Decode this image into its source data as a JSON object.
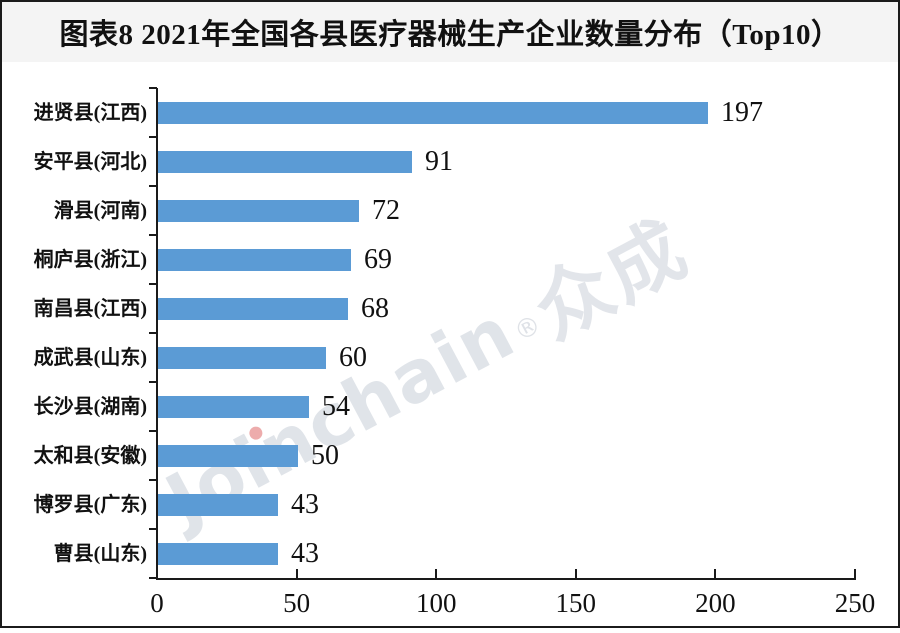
{
  "title": "图表8  2021年全国各县医疗器械生产企业数量分布（Top10）",
  "watermark": {
    "brand": "Joinchain",
    "reg": "®",
    "suffix": "众成"
  },
  "chart_data": {
    "type": "bar",
    "orientation": "horizontal",
    "title": "图表8 2021年全国各县医疗器械生产企业数量分布（Top10）",
    "categories": [
      "进贤县(江西)",
      "安平县(河北)",
      "滑县(河南)",
      "桐庐县(浙江)",
      "南昌县(江西)",
      "成武县(山东)",
      "长沙县(湖南)",
      "太和县(安徽)",
      "博罗县(广东)",
      "曹县(山东)"
    ],
    "values": [
      197,
      91,
      72,
      69,
      68,
      60,
      54,
      50,
      43,
      43
    ],
    "xlabel": "",
    "ylabel": "",
    "xlim": [
      0,
      250
    ],
    "x_ticks": [
      0,
      50,
      100,
      150,
      200,
      250
    ],
    "grid": "off",
    "value_labels_shown": true,
    "bar_color": "#5B9BD5",
    "axis_color": "#1a1a1a",
    "title_band_color": "#f4f4f4"
  }
}
